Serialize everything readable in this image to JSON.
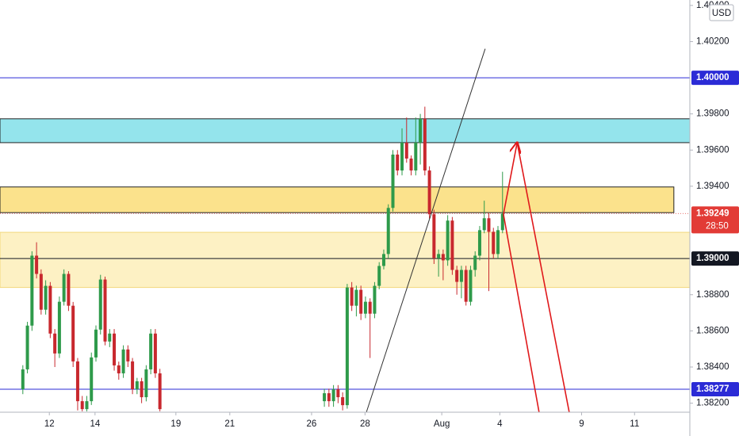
{
  "chart_data": {
    "type": "candlestick",
    "unit": "USD",
    "xlim": [
      0,
      151
    ],
    "ylim": [
      1.3815,
      1.4043
    ],
    "xticks": [
      {
        "value": 10.8,
        "label": "12"
      },
      {
        "value": 20.8,
        "label": "14"
      },
      {
        "value": 38.5,
        "label": "19"
      },
      {
        "value": 50.3,
        "label": "21"
      },
      {
        "value": 68.2,
        "label": "26"
      },
      {
        "value": 79.9,
        "label": "28"
      },
      {
        "value": 96.7,
        "label": "Aug"
      },
      {
        "value": 109.4,
        "label": "4"
      },
      {
        "value": 127.3,
        "label": "9"
      },
      {
        "value": 138.9,
        "label": "11"
      }
    ],
    "yticks": [
      {
        "value": 1.382,
        "label": "1.38200"
      },
      {
        "value": 1.384,
        "label": "1.38400"
      },
      {
        "value": 1.386,
        "label": "1.38600"
      },
      {
        "value": 1.388,
        "label": "1.38800"
      },
      {
        "value": 1.394,
        "label": "1.39400"
      },
      {
        "value": 1.396,
        "label": "1.39600"
      },
      {
        "value": 1.398,
        "label": "1.39800"
      },
      {
        "value": 1.402,
        "label": "1.40200"
      },
      {
        "value": 1.404,
        "label": "1.40400"
      }
    ],
    "up_color": "#2e9a4a",
    "down_color": "#c8282e",
    "x": [
      5,
      6,
      7,
      8,
      9,
      10,
      11,
      12,
      13,
      14,
      15,
      16,
      17,
      18,
      19,
      20,
      21,
      22,
      23,
      24,
      25,
      26,
      27,
      28,
      29,
      30,
      31,
      32,
      33,
      34,
      35,
      71,
      72,
      73,
      74,
      75,
      76,
      77,
      78,
      79,
      80,
      81,
      82,
      83,
      84,
      85,
      86,
      87,
      88,
      89,
      90,
      91,
      92,
      93,
      94,
      95,
      96,
      97,
      98,
      99,
      100,
      101,
      102,
      103,
      104,
      105,
      106,
      107,
      108,
      109,
      110
    ],
    "open": [
      1.38277,
      1.38387,
      1.38629,
      1.39016,
      1.38915,
      1.38717,
      1.38849,
      1.38585,
      1.38475,
      1.38761,
      1.38915,
      1.38739,
      1.38431,
      1.38211,
      1.38167,
      1.38211,
      1.38453,
      1.38607,
      1.38884,
      1.38541,
      1.38585,
      1.38409,
      1.38365,
      1.38497,
      1.38431,
      1.38277,
      1.38321,
      1.38233,
      1.38387,
      1.38585,
      1.38365,
      1.38211,
      1.38255,
      1.38211,
      1.38277,
      1.38233,
      1.38189,
      1.3884,
      1.38739,
      1.38827,
      1.38695,
      1.38761,
      1.38695,
      1.38849,
      1.38959,
      1.39025,
      1.3928,
      1.39575,
      1.39487,
      1.39641,
      1.39553,
      1.39487,
      1.39641,
      1.39773,
      1.39487,
      1.39245,
      1.39003,
      1.39025,
      1.3899,
      1.3921,
      1.38937,
      1.38871,
      1.38937,
      1.38761,
      1.38937,
      1.39016,
      1.39157,
      1.39223,
      1.39148,
      1.39025,
      1.39157
    ],
    "high": [
      1.3841,
      1.3865,
      1.3904,
      1.3909,
      1.3894,
      1.3888,
      1.3887,
      1.3861,
      1.3879,
      1.3894,
      1.3893,
      1.3876,
      1.3845,
      1.3824,
      1.3824,
      1.3848,
      1.3863,
      1.3891,
      1.389,
      1.3861,
      1.3861,
      1.3843,
      1.3852,
      1.3852,
      1.3845,
      1.3834,
      1.3834,
      1.3841,
      1.3861,
      1.3861,
      1.3839,
      1.3828,
      1.3828,
      1.383,
      1.383,
      1.3826,
      1.3886,
      1.3887,
      1.3885,
      1.3885,
      1.3879,
      1.3878,
      1.3887,
      1.3898,
      1.3905,
      1.393,
      1.396,
      1.396,
      1.3972,
      1.3978,
      1.3957,
      1.3978,
      1.398,
      1.3984,
      1.3951,
      1.3927,
      1.3905,
      1.3905,
      1.3924,
      1.3923,
      1.3896,
      1.3896,
      1.3896,
      1.3896,
      1.3904,
      1.3918,
      1.3932,
      1.3925,
      1.3917,
      1.3918,
      1.3948
    ],
    "low": [
      1.3825,
      1.38365,
      1.386,
      1.3889,
      1.3869,
      1.3869,
      1.3856,
      1.384,
      1.3845,
      1.3874,
      1.3871,
      1.384,
      1.3816,
      1.38155,
      1.38155,
      1.3819,
      1.3843,
      1.3858,
      1.3852,
      1.3851,
      1.3838,
      1.3833,
      1.3834,
      1.384,
      1.3825,
      1.3825,
      1.382,
      1.3821,
      1.3836,
      1.3834,
      1.38155,
      1.3818,
      1.3818,
      1.3818,
      1.382,
      1.3816,
      1.3817,
      1.3871,
      1.3868,
      1.3866,
      1.3867,
      1.3845,
      1.3867,
      1.3883,
      1.3894,
      1.39,
      1.3926,
      1.3946,
      1.3946,
      1.3953,
      1.3946,
      1.3946,
      1.3952,
      1.3946,
      1.3922,
      1.3897,
      1.389,
      1.3888,
      1.3896,
      1.3891,
      1.388,
      1.3878,
      1.3874,
      1.3874,
      1.389,
      1.3899,
      1.3914,
      1.3882,
      1.39,
      1.39,
      1.3914
    ],
    "close": [
      1.38387,
      1.38629,
      1.39016,
      1.38915,
      1.38717,
      1.38849,
      1.38585,
      1.38475,
      1.38761,
      1.38915,
      1.38739,
      1.38431,
      1.38211,
      1.38167,
      1.38211,
      1.38453,
      1.38607,
      1.38884,
      1.38541,
      1.38585,
      1.38409,
      1.38365,
      1.38497,
      1.38431,
      1.38277,
      1.38321,
      1.38233,
      1.38387,
      1.38585,
      1.38365,
      1.38167,
      1.38255,
      1.38211,
      1.38277,
      1.38233,
      1.38189,
      1.3884,
      1.38739,
      1.38827,
      1.38695,
      1.38761,
      1.38695,
      1.38849,
      1.38959,
      1.39025,
      1.3928,
      1.39575,
      1.39487,
      1.39641,
      1.39553,
      1.39487,
      1.39641,
      1.39773,
      1.39487,
      1.39245,
      1.39003,
      1.39025,
      1.3899,
      1.3921,
      1.38937,
      1.38871,
      1.38937,
      1.38761,
      1.38937,
      1.39016,
      1.39157,
      1.39223,
      1.39148,
      1.39025,
      1.39157,
      1.39249
    ],
    "zones": [
      {
        "from": 1.39773,
        "to": 1.39641,
        "color": "#94e4ec",
        "border": "#222222"
      },
      {
        "from": 1.39396,
        "to": 1.39254,
        "color": "#fbe28c",
        "border": "#222222",
        "x_end": 147.5
      },
      {
        "from": 1.39145,
        "to": 1.3884,
        "color": "#fdf1c4",
        "border": "#f2d77a"
      }
    ],
    "levels": [
      {
        "value": 1.4,
        "label": "1.40000",
        "color": "#2b2bd6"
      },
      {
        "value": 1.38277,
        "label": "1.38277",
        "color": "#2b2bd6"
      },
      {
        "value": 1.39,
        "label": "1.39000",
        "color": "#131722"
      },
      {
        "value": 1.39249,
        "label": "1.39249",
        "sublabel": "28:50",
        "color": "#e23b36",
        "dotted": true
      }
    ],
    "drawings": [
      {
        "x": [
          80.2,
          106.2
        ],
        "y": [
          1.3815,
          1.4016
        ],
        "color": "#333333"
      },
      {
        "x": [
          110.2,
          113.2
        ],
        "y": [
          1.39245,
          1.39641
        ],
        "color": "#e0191b",
        "arrow": true
      },
      {
        "x": [
          110.2,
          118.0
        ],
        "y": [
          1.39245,
          1.3815
        ],
        "color": "#e0191b"
      },
      {
        "x": [
          113.2,
          124.6
        ],
        "y": [
          1.39641,
          1.3815
        ],
        "color": "#e0191b"
      }
    ]
  }
}
